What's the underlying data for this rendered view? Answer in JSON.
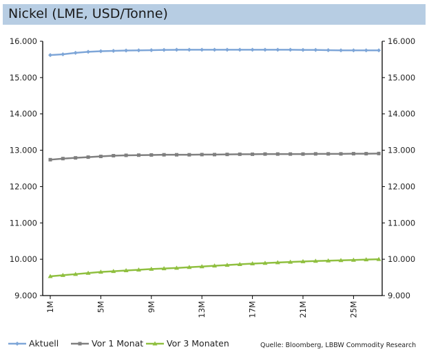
{
  "chart_data": {
    "type": "line",
    "title": "Nickel (LME, USD/Tonne)",
    "source": "Quelle: Bloomberg, LBBW Commodity Research",
    "x": [
      "1M",
      "2M",
      "3M",
      "4M",
      "5M",
      "6M",
      "7M",
      "8M",
      "9M",
      "10M",
      "11M",
      "12M",
      "13M",
      "14M",
      "15M",
      "16M",
      "17M",
      "18M",
      "19M",
      "20M",
      "21M",
      "22M",
      "23M",
      "24M",
      "25M",
      "26M",
      "27M"
    ],
    "x_tick_labels": [
      "1M",
      "5M",
      "9M",
      "13M",
      "17M",
      "21M",
      "25M"
    ],
    "y_tick_labels": [
      "9.000",
      "10.000",
      "11.000",
      "12.000",
      "13.000",
      "14.000",
      "15.000",
      "16.000"
    ],
    "ylim": [
      9000,
      16000
    ],
    "grid": false,
    "legend_position": "bottom-left",
    "series": [
      {
        "name": "Aktuell",
        "color": "#7ea6d8",
        "marker": "diamond",
        "values": [
          15620,
          15640,
          15680,
          15710,
          15725,
          15735,
          15745,
          15750,
          15755,
          15760,
          15765,
          15765,
          15765,
          15765,
          15765,
          15765,
          15765,
          15765,
          15765,
          15765,
          15760,
          15760,
          15755,
          15750,
          15750,
          15750,
          15750
        ]
      },
      {
        "name": "Vor 1 Monat",
        "color": "#7f7f7f",
        "marker": "square",
        "values": [
          12740,
          12770,
          12790,
          12810,
          12830,
          12850,
          12860,
          12865,
          12870,
          12875,
          12875,
          12875,
          12880,
          12880,
          12885,
          12890,
          12890,
          12895,
          12895,
          12895,
          12895,
          12900,
          12900,
          12900,
          12905,
          12905,
          12910
        ]
      },
      {
        "name": "Vor 3 Monaten",
        "color": "#8fbf3f",
        "marker": "triangle",
        "values": [
          9530,
          9560,
          9590,
          9620,
          9650,
          9670,
          9690,
          9710,
          9730,
          9745,
          9760,
          9780,
          9800,
          9820,
          9840,
          9860,
          9880,
          9895,
          9910,
          9925,
          9940,
          9950,
          9960,
          9970,
          9980,
          9990,
          10000
        ]
      }
    ]
  }
}
